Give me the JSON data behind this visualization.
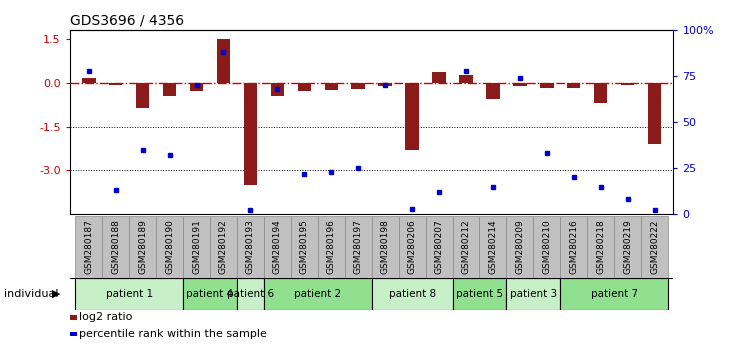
{
  "title": "GDS3696 / 4356",
  "samples": [
    "GSM280187",
    "GSM280188",
    "GSM280189",
    "GSM280190",
    "GSM280191",
    "GSM280192",
    "GSM280193",
    "GSM280194",
    "GSM280195",
    "GSM280196",
    "GSM280197",
    "GSM280198",
    "GSM280206",
    "GSM280207",
    "GSM280212",
    "GSM280214",
    "GSM280209",
    "GSM280210",
    "GSM280216",
    "GSM280218",
    "GSM280219",
    "GSM280222"
  ],
  "log2_ratio": [
    0.15,
    -0.08,
    -0.85,
    -0.45,
    -0.3,
    1.5,
    -3.5,
    -0.45,
    -0.3,
    -0.25,
    -0.22,
    -0.1,
    -2.3,
    0.35,
    0.28,
    -0.55,
    -0.12,
    -0.18,
    -0.18,
    -0.7,
    -0.07,
    -2.1
  ],
  "percentile_rank": [
    78,
    13,
    35,
    32,
    70,
    88,
    2,
    68,
    22,
    23,
    25,
    70,
    3,
    12,
    78,
    15,
    74,
    33,
    20,
    15,
    8,
    2
  ],
  "patients": [
    {
      "label": "patient 1",
      "start": 0,
      "end": 4,
      "shade": 0
    },
    {
      "label": "patient 4",
      "start": 4,
      "end": 6,
      "shade": 1
    },
    {
      "label": "patient 6",
      "start": 6,
      "end": 7,
      "shade": 0
    },
    {
      "label": "patient 2",
      "start": 7,
      "end": 11,
      "shade": 1
    },
    {
      "label": "patient 8",
      "start": 11,
      "end": 14,
      "shade": 0
    },
    {
      "label": "patient 5",
      "start": 14,
      "end": 16,
      "shade": 1
    },
    {
      "label": "patient 3",
      "start": 16,
      "end": 18,
      "shade": 0
    },
    {
      "label": "patient 7",
      "start": 18,
      "end": 22,
      "shade": 1
    }
  ],
  "ylim_left": [
    -4.5,
    1.8
  ],
  "ylim_right": [
    0,
    100
  ],
  "yticks_left": [
    1.5,
    0.0,
    -1.5,
    -3.0
  ],
  "yticks_right": [
    0,
    25,
    50,
    75,
    100
  ],
  "bar_color": "#8B1A1A",
  "dot_color": "#0000CC",
  "hline_color": "#CC0000",
  "dotline_color": "#000000",
  "shade_colors": [
    "#C8F0C8",
    "#90E090"
  ],
  "xtick_bg": "#C0C0C0",
  "bar_width": 0.5,
  "n_samples": 22
}
